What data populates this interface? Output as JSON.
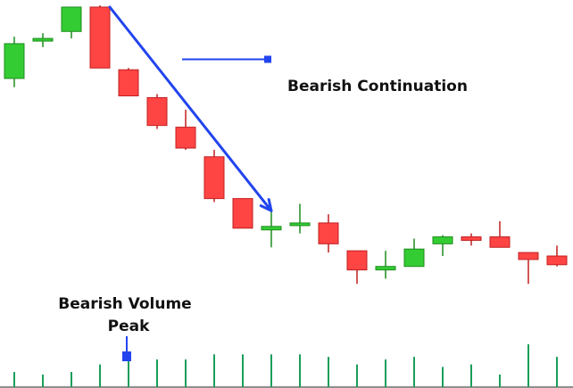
{
  "chart_data": {
    "type": "candlestick",
    "colors": {
      "bullish": "#33cc33",
      "bearish": "#ff4444",
      "bullish_stroke": "#1e8c1e",
      "bearish_stroke": "#c02020",
      "arrow": "#2244ee",
      "volume": "#1a9e5a"
    },
    "candles": [
      {
        "open": 88,
        "high": 112,
        "low": 83,
        "close": 108
      },
      {
        "open": 110,
        "high": 114,
        "low": 106,
        "close": 111
      },
      {
        "open": 115,
        "high": 129,
        "low": 111,
        "close": 129
      },
      {
        "open": 129,
        "high": 130,
        "low": 94,
        "close": 94
      },
      {
        "open": 93,
        "high": 94,
        "low": 78,
        "close": 78
      },
      {
        "open": 77,
        "high": 79,
        "low": 59,
        "close": 61
      },
      {
        "open": 60,
        "high": 70,
        "low": 47,
        "close": 48
      },
      {
        "open": 43,
        "high": 47,
        "low": 17,
        "close": 19
      },
      {
        "open": 19,
        "high": 19,
        "low": 2,
        "close": 2
      },
      {
        "open": 1,
        "high": 12,
        "low": -9,
        "close": 3
      },
      {
        "open": 4,
        "high": 16,
        "low": -1,
        "close": 5
      },
      {
        "open": 5,
        "high": 10,
        "low": -12,
        "close": -7
      },
      {
        "open": -11,
        "high": -11,
        "low": -30,
        "close": -22
      },
      {
        "open": -22,
        "high": -11,
        "low": -27,
        "close": -20
      },
      {
        "open": -20,
        "high": -4,
        "low": -20,
        "close": -10
      },
      {
        "open": -7,
        "high": -2,
        "low": -14,
        "close": -3
      },
      {
        "open": -3,
        "high": -1,
        "low": -8,
        "close": -5
      },
      {
        "open": -3,
        "high": 6,
        "low": -9,
        "close": -9
      },
      {
        "open": -12,
        "high": -12,
        "low": -30,
        "close": -16
      },
      {
        "open": -14,
        "high": -8,
        "low": -20,
        "close": -19
      }
    ],
    "volume": [
      6,
      5,
      6,
      9,
      13,
      11,
      11,
      13,
      13,
      13,
      13,
      12,
      9,
      11,
      12,
      8,
      9,
      5,
      17,
      12
    ],
    "ylim": [
      -35,
      130
    ],
    "volume_max": 17,
    "annotations": {
      "arrow": {
        "from_index": 3,
        "from_value": 129,
        "to_index": 9,
        "to_value": 12
      },
      "continuation": {
        "label": "Bearish Continuation",
        "index": 6,
        "value": 99
      },
      "volume_peak": {
        "line1": "Bearish Volume",
        "line2": "Peak",
        "index": 4
      }
    }
  }
}
